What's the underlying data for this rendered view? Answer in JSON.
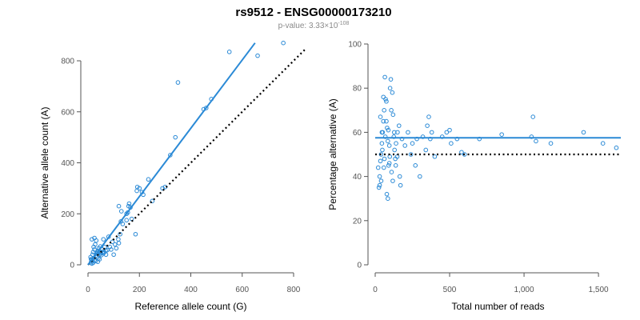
{
  "header": {
    "title": "rs9512 - ENSG00000173210",
    "pvalue_prefix": "p-value: 3.33×10",
    "pvalue_exponent": "-108"
  },
  "colors": {
    "points": "#2b8ad6",
    "fit_line": "#2b8ad6",
    "reference_line": "#000000",
    "axis": "#555555"
  },
  "chart_data": [
    {
      "type": "scatter",
      "title": "",
      "xlabel": "Reference allele count (G)",
      "ylabel": "Alternative allele count (A)",
      "xlim": [
        0,
        800
      ],
      "ylim": [
        0,
        800
      ],
      "xticks": [
        "0",
        "200",
        "400",
        "600",
        "800"
      ],
      "yticks": [
        "0",
        "200",
        "400",
        "600",
        "800"
      ],
      "fit_line": {
        "from": [
          0,
          0
        ],
        "to": [
          650,
          870
        ]
      },
      "reference_line": {
        "from": [
          0,
          0
        ],
        "to": [
          850,
          850
        ],
        "style": "dotted"
      },
      "points": [
        [
          12,
          10
        ],
        [
          15,
          20
        ],
        [
          10,
          30
        ],
        [
          18,
          40
        ],
        [
          20,
          50
        ],
        [
          25,
          60
        ],
        [
          30,
          35
        ],
        [
          35,
          45
        ],
        [
          40,
          55
        ],
        [
          22,
          70
        ],
        [
          28,
          80
        ],
        [
          32,
          95
        ],
        [
          15,
          100
        ],
        [
          25,
          105
        ],
        [
          12,
          22
        ],
        [
          18,
          15
        ],
        [
          30,
          15
        ],
        [
          40,
          25
        ],
        [
          45,
          40
        ],
        [
          50,
          50
        ],
        [
          55,
          60
        ],
        [
          60,
          45
        ],
        [
          65,
          70
        ],
        [
          70,
          55
        ],
        [
          15,
          5
        ],
        [
          20,
          8
        ],
        [
          35,
          30
        ],
        [
          42,
          65
        ],
        [
          48,
          72
        ],
        [
          52,
          38
        ],
        [
          58,
          52
        ],
        [
          62,
          48
        ],
        [
          75,
          58
        ],
        [
          80,
          110
        ],
        [
          85,
          70
        ],
        [
          90,
          60
        ],
        [
          100,
          40
        ],
        [
          105,
          80
        ],
        [
          110,
          65
        ],
        [
          118,
          100
        ],
        [
          120,
          85
        ],
        [
          125,
          120
        ],
        [
          128,
          170
        ],
        [
          130,
          210
        ],
        [
          120,
          230
        ],
        [
          135,
          160
        ],
        [
          150,
          175
        ],
        [
          150,
          200
        ],
        [
          155,
          205
        ],
        [
          158,
          230
        ],
        [
          165,
          225
        ],
        [
          160,
          240
        ],
        [
          170,
          180
        ],
        [
          185,
          120
        ],
        [
          190,
          290
        ],
        [
          192,
          305
        ],
        [
          200,
          300
        ],
        [
          210,
          285
        ],
        [
          215,
          275
        ],
        [
          235,
          335
        ],
        [
          250,
          250
        ],
        [
          290,
          300
        ],
        [
          300,
          305
        ],
        [
          320,
          430
        ],
        [
          340,
          500
        ],
        [
          350,
          715
        ],
        [
          450,
          610
        ],
        [
          460,
          615
        ],
        [
          480,
          650
        ],
        [
          550,
          835
        ],
        [
          660,
          820
        ],
        [
          760,
          870
        ],
        [
          25,
          18
        ],
        [
          38,
          12
        ],
        [
          45,
          22
        ],
        [
          70,
          40
        ],
        [
          95,
          90
        ],
        [
          60,
          100
        ],
        [
          50,
          45
        ],
        [
          36,
          50
        ]
      ]
    },
    {
      "type": "scatter",
      "title": "",
      "xlabel": "Total number of reads",
      "ylabel": "Percentage alternative (A)",
      "xlim": [
        0,
        1650
      ],
      "ylim": [
        0,
        100
      ],
      "xticks": [
        "0",
        "500",
        "1,000",
        "1,500"
      ],
      "xtick_values": [
        0,
        500,
        1000,
        1500
      ],
      "yticks": [
        "0",
        "20",
        "40",
        "60",
        "80",
        "100"
      ],
      "fit_line": {
        "from": [
          0,
          57.5
        ],
        "to": [
          1650,
          57.5
        ]
      },
      "reference_line": {
        "from": [
          0,
          50
        ],
        "to": [
          1650,
          50
        ],
        "style": "dotted"
      },
      "points": [
        [
          20,
          44
        ],
        [
          25,
          35
        ],
        [
          30,
          40
        ],
        [
          30,
          36
        ],
        [
          35,
          47
        ],
        [
          40,
          50
        ],
        [
          45,
          55
        ],
        [
          50,
          60
        ],
        [
          55,
          65
        ],
        [
          60,
          70
        ],
        [
          62,
          48
        ],
        [
          65,
          85
        ],
        [
          70,
          75
        ],
        [
          75,
          74
        ],
        [
          80,
          62
        ],
        [
          85,
          56
        ],
        [
          90,
          45
        ],
        [
          95,
          54
        ],
        [
          100,
          80
        ],
        [
          105,
          84
        ],
        [
          110,
          42
        ],
        [
          115,
          78
        ],
        [
          120,
          68
        ],
        [
          125,
          58
        ],
        [
          130,
          52
        ],
        [
          135,
          48
        ],
        [
          140,
          55
        ],
        [
          150,
          60
        ],
        [
          160,
          63
        ],
        [
          165,
          40
        ],
        [
          170,
          36
        ],
        [
          180,
          57
        ],
        [
          200,
          54
        ],
        [
          220,
          60
        ],
        [
          240,
          50
        ],
        [
          250,
          55
        ],
        [
          270,
          45
        ],
        [
          280,
          57
        ],
        [
          300,
          40
        ],
        [
          320,
          58
        ],
        [
          340,
          52
        ],
        [
          350,
          63
        ],
        [
          360,
          67
        ],
        [
          370,
          57
        ],
        [
          380,
          60
        ],
        [
          400,
          49
        ],
        [
          450,
          58
        ],
        [
          480,
          60
        ],
        [
          500,
          61
        ],
        [
          510,
          55
        ],
        [
          550,
          57
        ],
        [
          580,
          51
        ],
        [
          600,
          50
        ],
        [
          700,
          57
        ],
        [
          850,
          59
        ],
        [
          1050,
          58
        ],
        [
          1060,
          67
        ],
        [
          1080,
          56
        ],
        [
          1180,
          55
        ],
        [
          1400,
          60
        ],
        [
          1530,
          55
        ],
        [
          1620,
          53
        ],
        [
          35,
          67
        ],
        [
          45,
          60
        ],
        [
          55,
          76
        ],
        [
          75,
          65
        ],
        [
          85,
          30
        ],
        [
          95,
          46
        ],
        [
          40,
          38
        ],
        [
          48,
          52
        ],
        [
          58,
          44
        ],
        [
          68,
          58
        ],
        [
          78,
          32
        ],
        [
          88,
          61
        ],
        [
          98,
          49
        ],
        [
          108,
          70
        ],
        [
          118,
          38
        ],
        [
          128,
          60
        ],
        [
          138,
          45
        ],
        [
          148,
          49
        ]
      ]
    }
  ]
}
